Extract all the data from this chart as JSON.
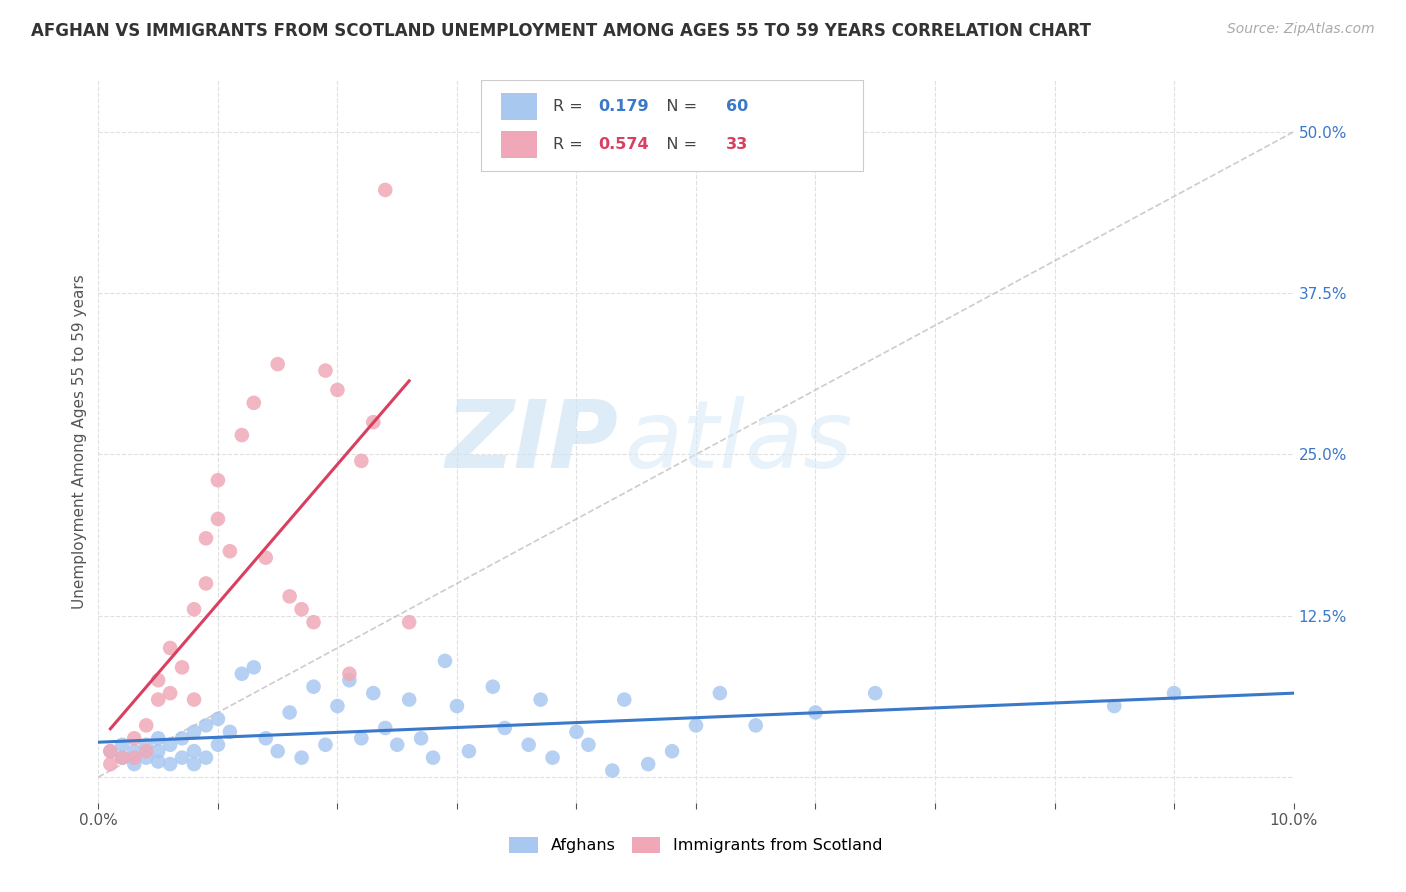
{
  "title": "AFGHAN VS IMMIGRANTS FROM SCOTLAND UNEMPLOYMENT AMONG AGES 55 TO 59 YEARS CORRELATION CHART",
  "source": "Source: ZipAtlas.com",
  "ylabel": "Unemployment Among Ages 55 to 59 years",
  "xlim": [
    0.0,
    0.1
  ],
  "ylim": [
    -0.02,
    0.54
  ],
  "xtick_vals": [
    0.0,
    0.01,
    0.02,
    0.03,
    0.04,
    0.05,
    0.06,
    0.07,
    0.08,
    0.09,
    0.1
  ],
  "xtick_labels": [
    "0.0%",
    "",
    "",
    "",
    "",
    "",
    "",
    "",
    "",
    "",
    "10.0%"
  ],
  "ytick_vals": [
    0.0,
    0.125,
    0.25,
    0.375,
    0.5
  ],
  "ytick_labels": [
    "",
    "12.5%",
    "25.0%",
    "37.5%",
    "50.0%"
  ],
  "afghans_color": "#a8c8f0",
  "scotland_color": "#f0a8b8",
  "trend_afghan_color": "#3a78c9",
  "trend_scotland_color": "#d94060",
  "diagonal_color": "#c0c0c0",
  "R_afghan": 0.179,
  "N_afghan": 60,
  "R_scotland": 0.574,
  "N_scotland": 33,
  "afghans_x": [
    0.001,
    0.002,
    0.002,
    0.003,
    0.003,
    0.004,
    0.004,
    0.005,
    0.005,
    0.005,
    0.006,
    0.006,
    0.007,
    0.007,
    0.008,
    0.008,
    0.008,
    0.009,
    0.009,
    0.01,
    0.01,
    0.011,
    0.012,
    0.013,
    0.014,
    0.015,
    0.016,
    0.017,
    0.018,
    0.019,
    0.02,
    0.021,
    0.022,
    0.023,
    0.024,
    0.025,
    0.026,
    0.027,
    0.028,
    0.029,
    0.03,
    0.031,
    0.033,
    0.034,
    0.036,
    0.037,
    0.038,
    0.04,
    0.041,
    0.043,
    0.044,
    0.046,
    0.048,
    0.05,
    0.052,
    0.055,
    0.06,
    0.065,
    0.085,
    0.09
  ],
  "afghans_y": [
    0.02,
    0.015,
    0.025,
    0.01,
    0.02,
    0.015,
    0.025,
    0.03,
    0.012,
    0.02,
    0.025,
    0.01,
    0.03,
    0.015,
    0.035,
    0.02,
    0.01,
    0.04,
    0.015,
    0.045,
    0.025,
    0.035,
    0.08,
    0.085,
    0.03,
    0.02,
    0.05,
    0.015,
    0.07,
    0.025,
    0.055,
    0.075,
    0.03,
    0.065,
    0.038,
    0.025,
    0.06,
    0.03,
    0.015,
    0.09,
    0.055,
    0.02,
    0.07,
    0.038,
    0.025,
    0.06,
    0.015,
    0.035,
    0.025,
    0.005,
    0.06,
    0.01,
    0.02,
    0.04,
    0.065,
    0.04,
    0.05,
    0.065,
    0.055,
    0.065
  ],
  "scotland_x": [
    0.001,
    0.001,
    0.002,
    0.003,
    0.003,
    0.004,
    0.004,
    0.005,
    0.005,
    0.006,
    0.006,
    0.007,
    0.008,
    0.008,
    0.009,
    0.009,
    0.01,
    0.01,
    0.011,
    0.012,
    0.013,
    0.014,
    0.015,
    0.016,
    0.017,
    0.018,
    0.019,
    0.02,
    0.021,
    0.022,
    0.023,
    0.024,
    0.026
  ],
  "scotland_y": [
    0.01,
    0.02,
    0.015,
    0.03,
    0.015,
    0.04,
    0.02,
    0.075,
    0.06,
    0.1,
    0.065,
    0.085,
    0.13,
    0.06,
    0.185,
    0.15,
    0.23,
    0.2,
    0.175,
    0.265,
    0.29,
    0.17,
    0.32,
    0.14,
    0.13,
    0.12,
    0.315,
    0.3,
    0.08,
    0.245,
    0.275,
    0.455,
    0.12
  ],
  "watermark_zip": "ZIP",
  "watermark_atlas": "atlas",
  "background_color": "#ffffff",
  "grid_color": "#e0e0e0",
  "legend_box_color": "#f5f5f5",
  "legend_border_color": "#cccccc"
}
